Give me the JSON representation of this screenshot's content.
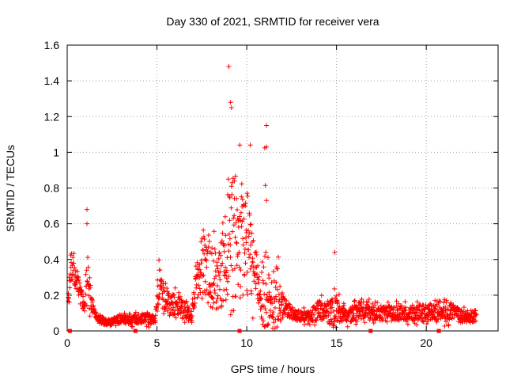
{
  "chart_data": {
    "type": "scatter",
    "title": "Day 330 of 2021, SRMTID for receiver vera",
    "xlabel": "GPS time / hours",
    "ylabel": "SRMTID / TECUs",
    "xlim": [
      0,
      24
    ],
    "ylim": [
      0,
      1.6
    ],
    "xticks": [
      "0",
      "5",
      "10",
      "15",
      "20"
    ],
    "yticks": [
      "0",
      "0.2",
      "0.4",
      "0.6",
      "0.8",
      "1",
      "1.2",
      "1.4",
      "1.6"
    ],
    "grid": true,
    "marker": "+",
    "series_color": "#ff0000",
    "gap_markers_x": [
      0.15,
      3.8,
      9.6,
      16.9,
      20.7
    ],
    "envelope_hours": [
      0.0,
      0.2,
      0.5,
      0.8,
      1.0,
      1.1,
      1.4,
      1.8,
      2.5,
      3.0,
      3.5,
      4.0,
      4.5,
      4.9,
      5.1,
      5.3,
      5.8,
      6.2,
      6.6,
      6.9,
      7.2,
      7.6,
      8.0,
      8.4,
      8.8,
      9.2,
      9.6,
      10.0,
      10.4,
      10.8,
      11.0,
      11.3,
      11.7,
      12.0,
      12.5,
      13.0,
      13.5,
      14.0,
      14.5,
      14.9,
      15.2,
      15.6,
      16.0,
      16.5,
      17.0,
      18.0,
      19.0,
      20.0,
      21.0,
      22.0,
      22.8
    ],
    "envelope_mean": [
      0.1,
      0.38,
      0.3,
      0.2,
      0.12,
      0.3,
      0.12,
      0.06,
      0.05,
      0.07,
      0.06,
      0.07,
      0.07,
      0.06,
      0.28,
      0.2,
      0.15,
      0.14,
      0.12,
      0.07,
      0.28,
      0.38,
      0.3,
      0.3,
      0.42,
      0.5,
      0.52,
      0.5,
      0.35,
      0.18,
      0.2,
      0.16,
      0.2,
      0.15,
      0.1,
      0.08,
      0.08,
      0.12,
      0.1,
      0.12,
      0.1,
      0.08,
      0.1,
      0.12,
      0.1,
      0.1,
      0.1,
      0.1,
      0.12,
      0.08,
      0.08
    ],
    "envelope_spread": [
      0.05,
      0.14,
      0.1,
      0.08,
      0.05,
      0.28,
      0.06,
      0.04,
      0.03,
      0.04,
      0.04,
      0.04,
      0.05,
      0.04,
      0.22,
      0.12,
      0.1,
      0.1,
      0.1,
      0.05,
      0.16,
      0.35,
      0.3,
      0.3,
      0.45,
      0.75,
      0.6,
      0.5,
      0.3,
      0.12,
      0.9,
      0.1,
      0.35,
      0.08,
      0.06,
      0.05,
      0.05,
      0.1,
      0.08,
      0.2,
      0.08,
      0.06,
      0.08,
      0.1,
      0.07,
      0.07,
      0.07,
      0.08,
      0.1,
      0.06,
      0.06
    ],
    "point_count": 1700
  }
}
